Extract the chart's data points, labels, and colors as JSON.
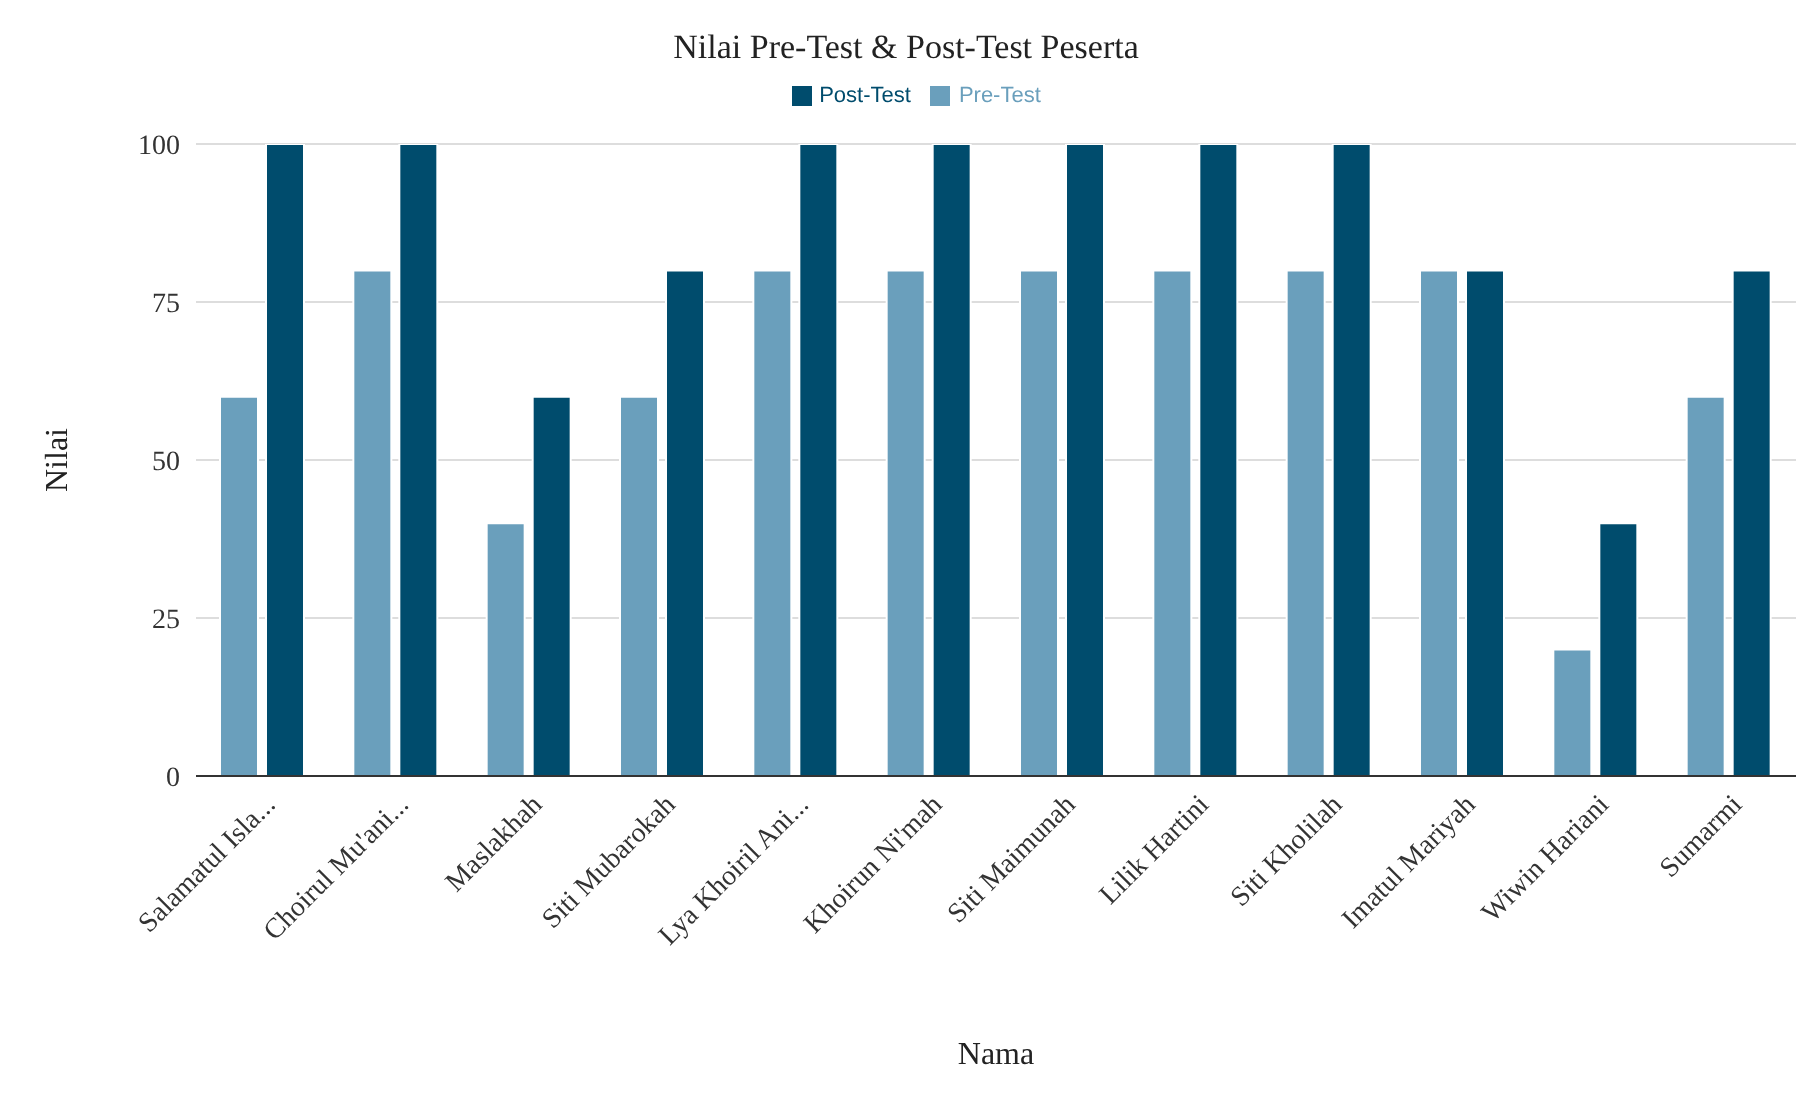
{
  "chart_data": {
    "type": "bar",
    "title": "Nilai Pre-Test & Post-Test Peserta",
    "xlabel": "Nama",
    "ylabel": "Nilai",
    "categories": [
      "Salamatul Isla...",
      "Choirul Mu'ani...",
      "Maslakhah",
      "Siti Mubarokah",
      "Lya Khoiril Ani...",
      "Khoirun Ni'mah",
      "Siti Maimunah",
      "Lilik Hartini",
      "Siti Kholilah",
      "Imatul Mariyah",
      "Wiwin Hariani",
      "Sumarmi"
    ],
    "series": [
      {
        "name": "Pre-Test",
        "color": "#6a9fbc",
        "values": [
          60,
          80,
          40,
          60,
          80,
          80,
          80,
          80,
          80,
          80,
          20,
          60
        ]
      },
      {
        "name": "Post-Test",
        "color": "#004c6d",
        "values": [
          100,
          100,
          60,
          80,
          100,
          100,
          100,
          100,
          100,
          80,
          40,
          80
        ]
      }
    ],
    "ylim": [
      0,
      100
    ],
    "yticks": [
      0,
      25,
      50,
      75,
      100
    ],
    "grid": "y",
    "legend": "top"
  }
}
